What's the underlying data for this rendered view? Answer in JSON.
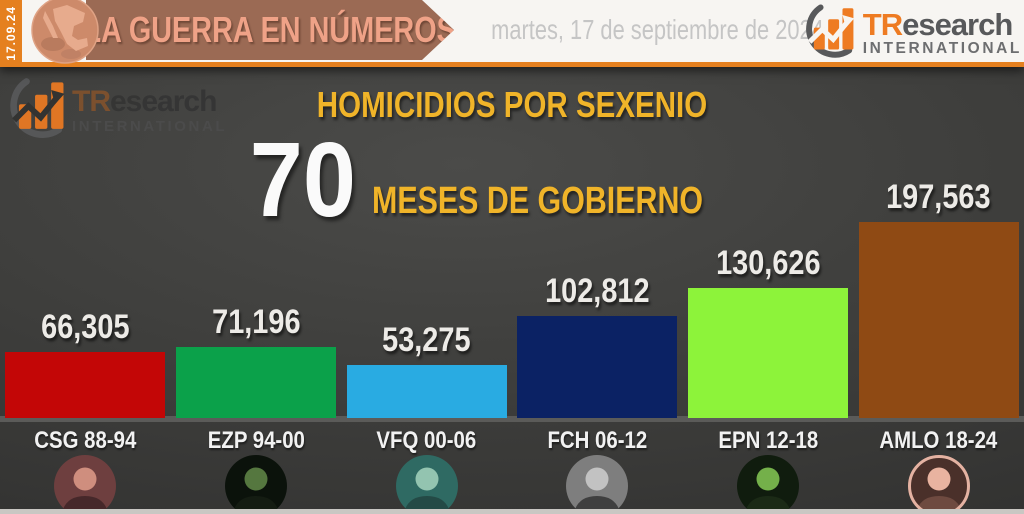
{
  "sidebar_date": "17.09.24",
  "header": {
    "banner_title": "LA GUERRA EN NÚMEROS",
    "date": "martes, 17 de septiembre de 2024"
  },
  "brand": {
    "name_prefix": "TR",
    "name_suffix": "esearch",
    "subtitle": "INTERNATIONAL"
  },
  "main_title": {
    "top": "HOMICIDIOS POR SEXENIO",
    "number": "70",
    "bottom": "MESES DE GOBIERNO"
  },
  "chart_data": {
    "type": "bar",
    "title": "HOMICIDIOS POR SEXENIO",
    "subtitle": "70 MESES DE GOBIERNO",
    "categories": [
      "CSG 88-94",
      "EZP 94-00",
      "VFQ 00-06",
      "FCH 06-12",
      "EPN 12-18",
      "AMLO 18-24"
    ],
    "values": [
      66305,
      71196,
      53275,
      102812,
      130626,
      197563
    ],
    "value_labels": [
      "66,305",
      "71,196",
      "53,275",
      "102,812",
      "130,626",
      "197,563"
    ],
    "bar_colors": [
      "#c30606",
      "#0ba14a",
      "#29abe2",
      "#0b2264",
      "#8df33a",
      "#8f4a14"
    ],
    "ylim": [
      0,
      197563
    ],
    "grid": false,
    "legend": "none",
    "avatar_tints": [
      {
        "bg": "#6e3f3f",
        "face": "#cf8e7e",
        "suit": "#46282a",
        "ring": ""
      },
      {
        "bg": "#0b120b",
        "face": "#55773f",
        "suit": "#141c12",
        "ring": ""
      },
      {
        "bg": "#2f6a63",
        "face": "#93c4b0",
        "suit": "#244a46",
        "ring": ""
      },
      {
        "bg": "#7e7e7e",
        "face": "#c2c2c2",
        "suit": "#3f3f3f",
        "ring": ""
      },
      {
        "bg": "#101c0e",
        "face": "#74b04a",
        "suit": "#1b2a16",
        "ring": ""
      },
      {
        "bg": "#4a302a",
        "face": "#e9b3a0",
        "suit": "#6e4a40",
        "ring": "#e4b2a2"
      }
    ]
  },
  "colors": {
    "accent_orange": "#e5801f",
    "banner_brown": "#9b6a54",
    "banner_text": "#efa287",
    "title_yellow": "#f0b429",
    "logo_orange": "#ee7b22",
    "logo_gray": "#58595b"
  }
}
